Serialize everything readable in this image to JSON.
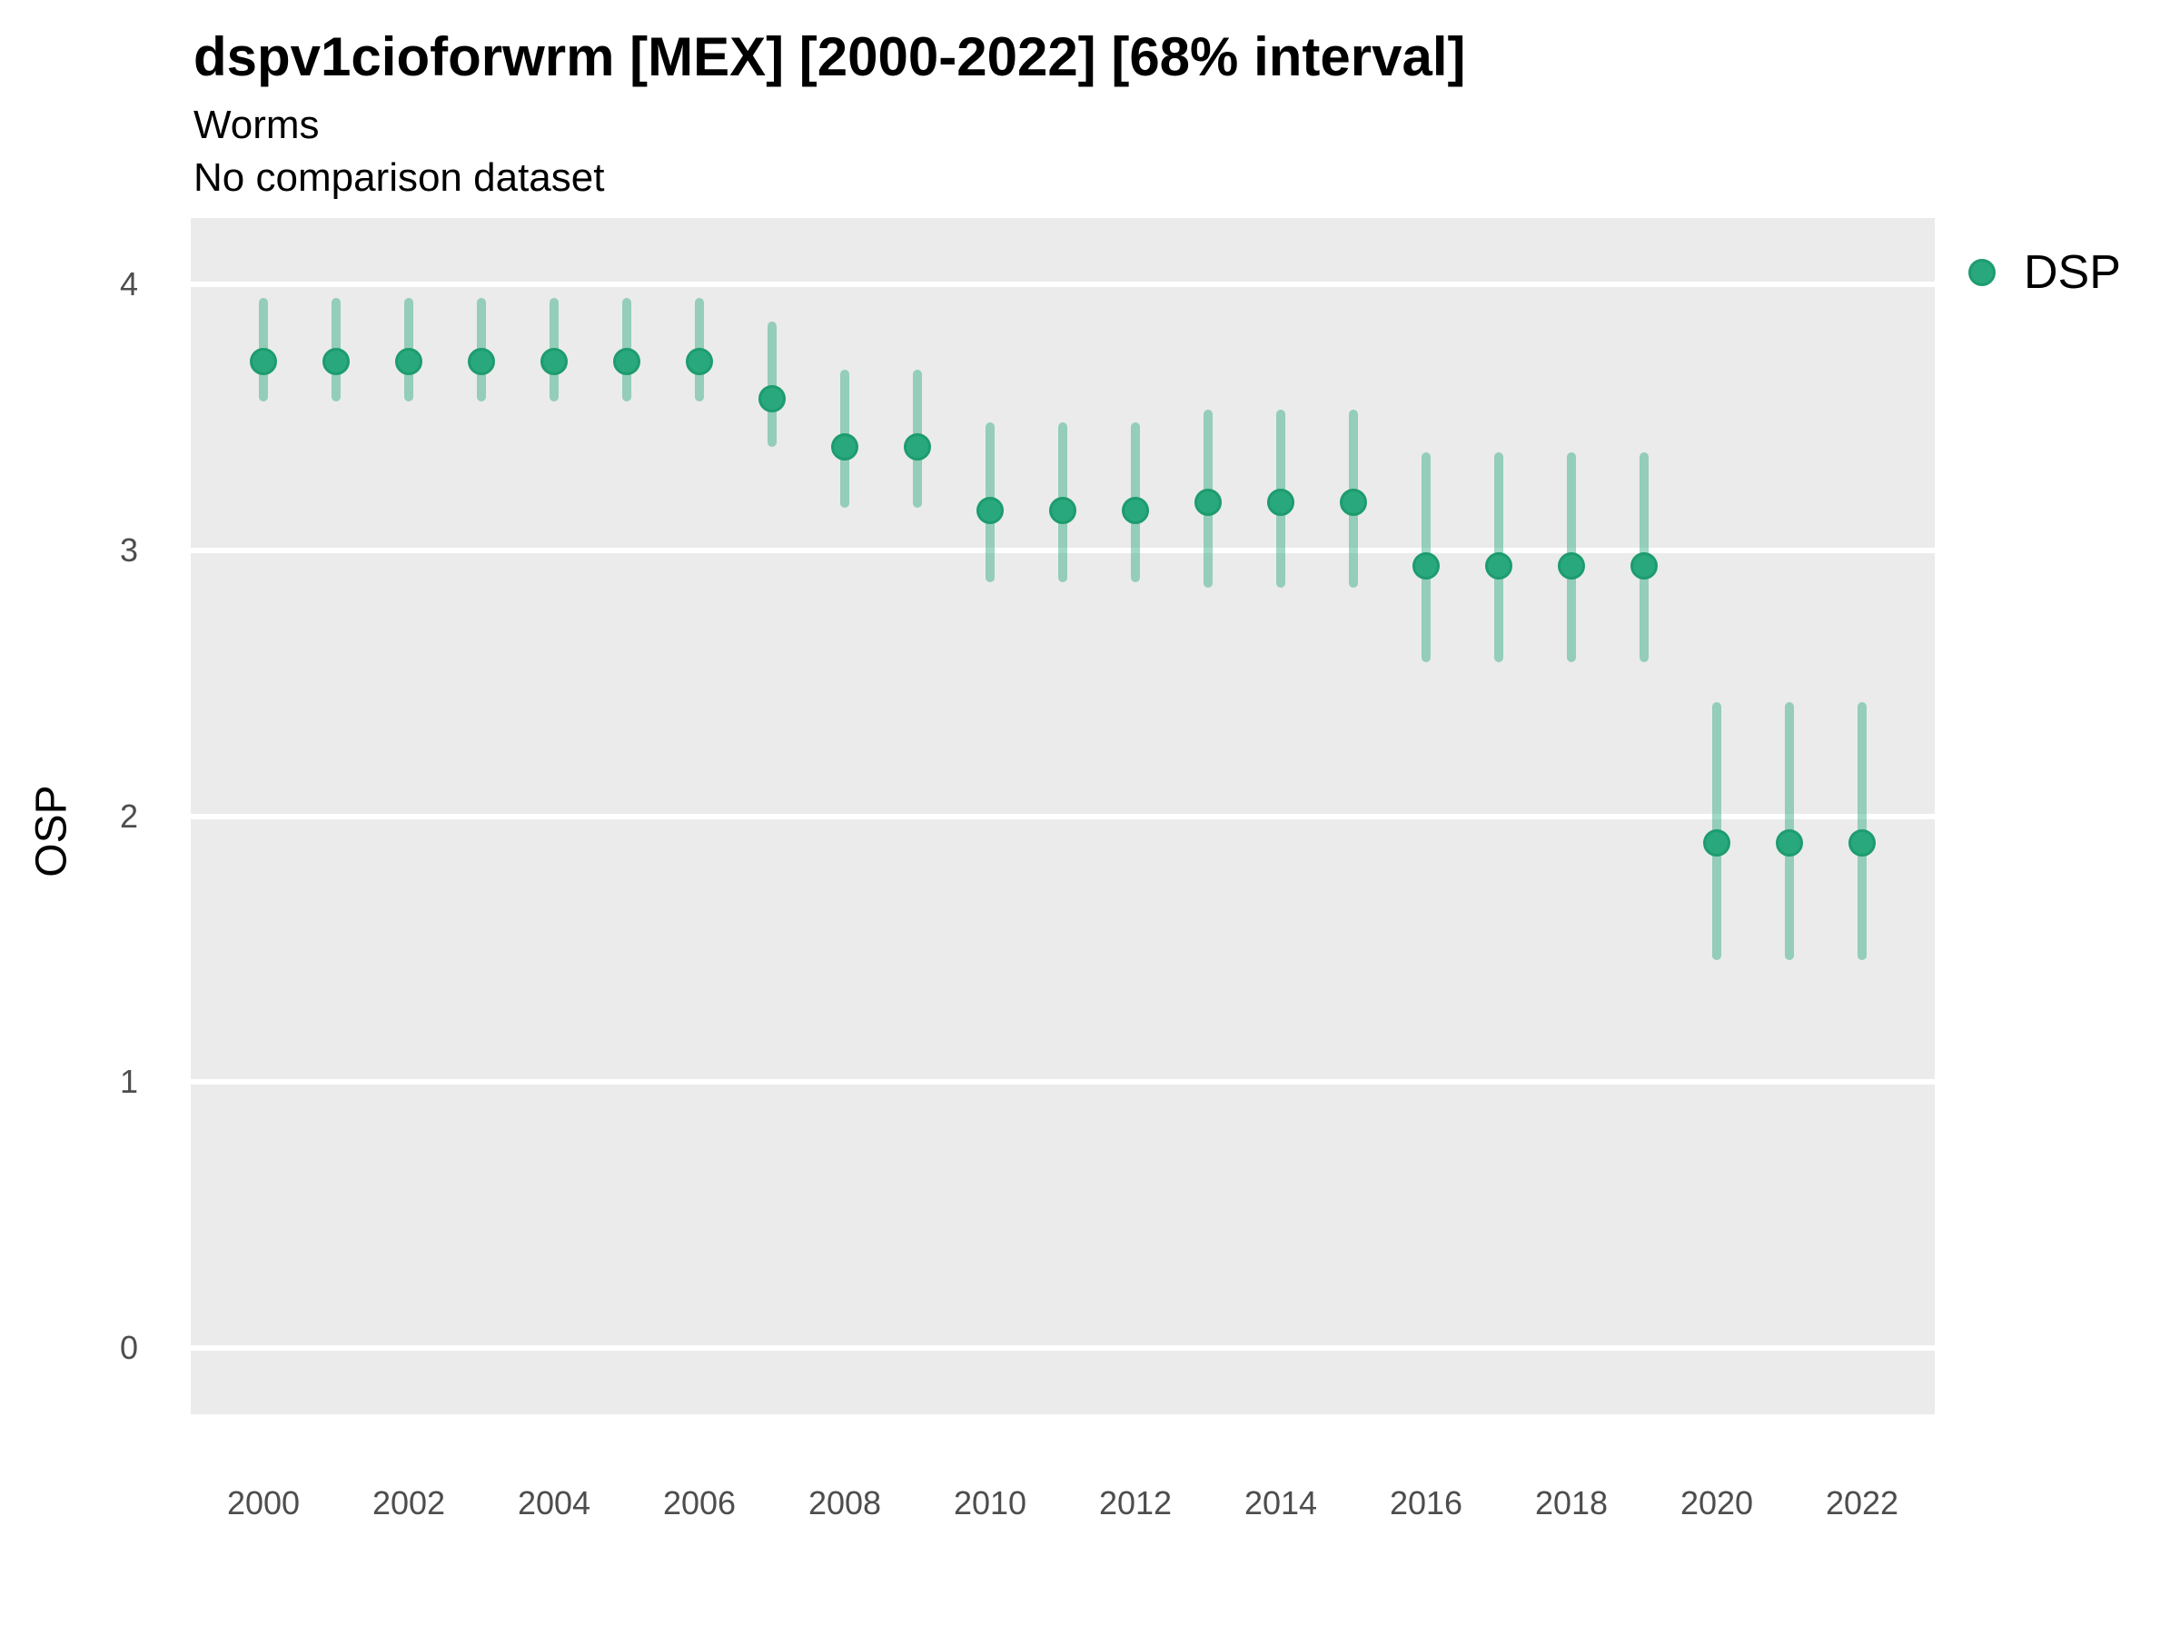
{
  "header": {
    "title": "dspv1cioforwrm [MEX] [2000-2022] [68% interval]",
    "subtitle_line1": "Worms",
    "subtitle_line2": "No comparison dataset"
  },
  "axes": {
    "y_label": "OSP"
  },
  "legend": {
    "position": "right-top",
    "items": [
      {
        "label": "DSP",
        "marker": "circle-icon",
        "color": "#2aa87d"
      }
    ]
  },
  "chart_data": {
    "type": "pointrange",
    "title": "dspv1cioforwrm [MEX] [2000-2022] [68% interval]",
    "subtitle": [
      "Worms",
      "No comparison dataset"
    ],
    "xlabel": "",
    "ylabel": "OSP",
    "interval_level": "68%",
    "ylim": [
      -0.25,
      4.25
    ],
    "xlim": [
      1999,
      2023
    ],
    "y_ticks": [
      0,
      1,
      2,
      3,
      4
    ],
    "x_ticks": [
      2000,
      2002,
      2004,
      2006,
      2008,
      2010,
      2012,
      2014,
      2016,
      2018,
      2020,
      2022
    ],
    "grid": "horizontal-major-only",
    "legend_position": "right-top",
    "series": [
      {
        "name": "DSP",
        "points": [
          {
            "year": 2000,
            "value": 3.71,
            "lo": 3.56,
            "hi": 3.95
          },
          {
            "year": 2001,
            "value": 3.71,
            "lo": 3.56,
            "hi": 3.95
          },
          {
            "year": 2002,
            "value": 3.71,
            "lo": 3.56,
            "hi": 3.95
          },
          {
            "year": 2003,
            "value": 3.71,
            "lo": 3.56,
            "hi": 3.95
          },
          {
            "year": 2004,
            "value": 3.71,
            "lo": 3.56,
            "hi": 3.95
          },
          {
            "year": 2005,
            "value": 3.71,
            "lo": 3.56,
            "hi": 3.95
          },
          {
            "year": 2006,
            "value": 3.71,
            "lo": 3.56,
            "hi": 3.95
          },
          {
            "year": 2007,
            "value": 3.57,
            "lo": 3.39,
            "hi": 3.86
          },
          {
            "year": 2008,
            "value": 3.39,
            "lo": 3.16,
            "hi": 3.68
          },
          {
            "year": 2009,
            "value": 3.39,
            "lo": 3.16,
            "hi": 3.68
          },
          {
            "year": 2010,
            "value": 3.15,
            "lo": 2.88,
            "hi": 3.48
          },
          {
            "year": 2011,
            "value": 3.15,
            "lo": 2.88,
            "hi": 3.48
          },
          {
            "year": 2012,
            "value": 3.15,
            "lo": 2.88,
            "hi": 3.48
          },
          {
            "year": 2013,
            "value": 3.18,
            "lo": 2.86,
            "hi": 3.53
          },
          {
            "year": 2014,
            "value": 3.18,
            "lo": 2.86,
            "hi": 3.53
          },
          {
            "year": 2015,
            "value": 3.18,
            "lo": 2.86,
            "hi": 3.53
          },
          {
            "year": 2016,
            "value": 2.94,
            "lo": 2.58,
            "hi": 3.37
          },
          {
            "year": 2017,
            "value": 2.94,
            "lo": 2.58,
            "hi": 3.37
          },
          {
            "year": 2018,
            "value": 2.94,
            "lo": 2.58,
            "hi": 3.37
          },
          {
            "year": 2019,
            "value": 2.94,
            "lo": 2.58,
            "hi": 3.37
          },
          {
            "year": 2020,
            "value": 1.9,
            "lo": 1.46,
            "hi": 2.43
          },
          {
            "year": 2021,
            "value": 1.9,
            "lo": 1.46,
            "hi": 2.43
          },
          {
            "year": 2022,
            "value": 1.9,
            "lo": 1.46,
            "hi": 2.43
          }
        ]
      }
    ],
    "colors": {
      "point_fill": "#2aa87d",
      "point_stroke": "#1d9c6e",
      "interval_line": "rgba(42,168,125,0.45)",
      "panel_background": "#ebebeb",
      "gridline": "#ffffff",
      "tick_label": "#4d4d4d",
      "text": "#000000"
    }
  }
}
